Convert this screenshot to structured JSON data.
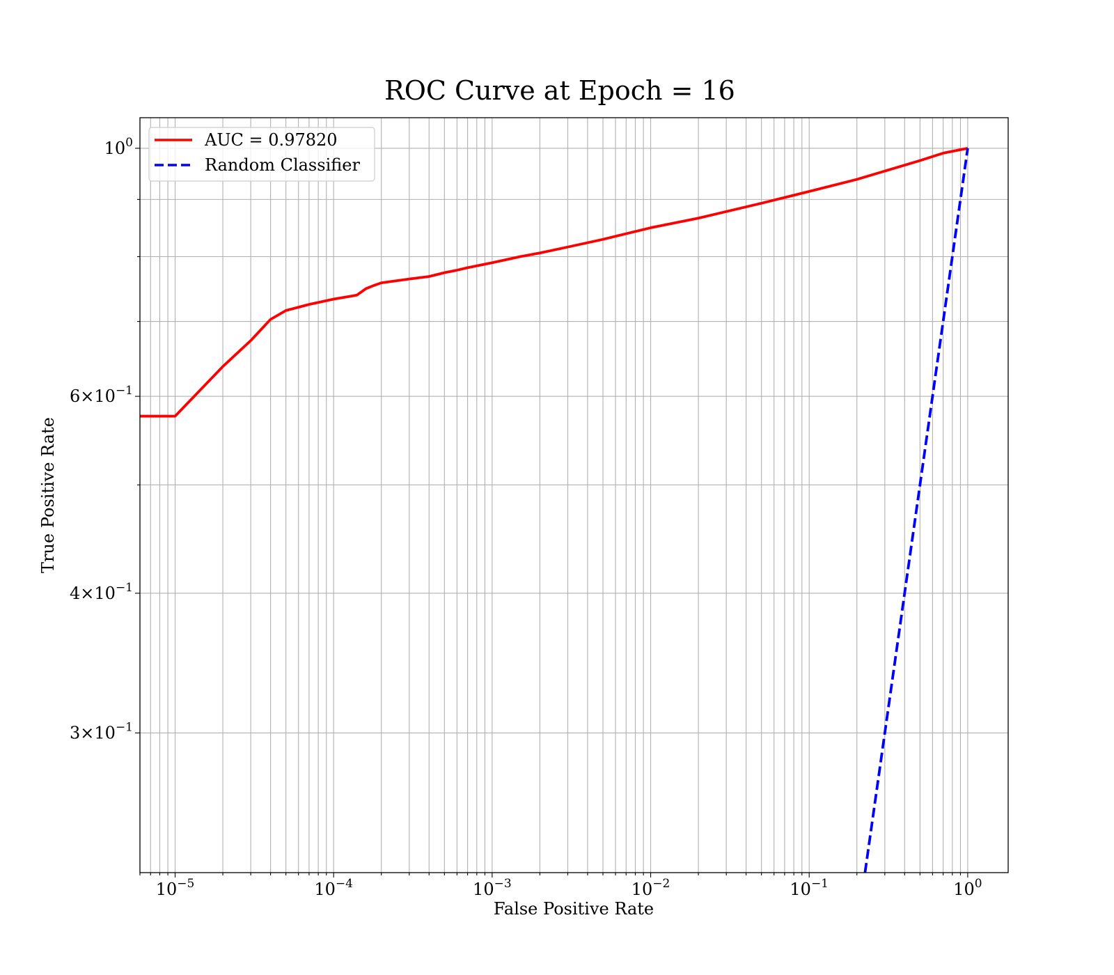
{
  "chart_data": {
    "type": "line",
    "title": "ROC Curve at Epoch = 16",
    "xlabel": "False Positive Rate",
    "ylabel": "True Positive Rate",
    "xscale": "log",
    "yscale": "log",
    "xlim": [
      6e-06,
      1.8
    ],
    "ylim": [
      0.225,
      1.065
    ],
    "grid": "both major and minor",
    "legend_position": "upper-left",
    "x_ticks": [
      {
        "base": "10",
        "exp": "−5"
      },
      {
        "base": "10",
        "exp": "−4"
      },
      {
        "base": "10",
        "exp": "−3"
      },
      {
        "base": "10",
        "exp": "−2"
      },
      {
        "base": "10",
        "exp": "−1"
      },
      {
        "base": "10",
        "exp": "0"
      }
    ],
    "y_ticks": [
      {
        "coef": "",
        "base": "10",
        "exp": "0"
      },
      {
        "coef": "6×",
        "base": "10",
        "exp": "−1"
      },
      {
        "coef": "4×",
        "base": "10",
        "exp": "−1"
      },
      {
        "coef": "3×",
        "base": "10",
        "exp": "−1"
      }
    ],
    "series": [
      {
        "name": "AUC = 0.97820",
        "color": "#ff0000",
        "style": "solid",
        "x": [
          6e-06,
          1e-05,
          2e-05,
          3e-05,
          4e-05,
          5e-05,
          7e-05,
          0.0001,
          0.00014,
          0.00016,
          0.00018,
          0.0002,
          0.0003,
          0.0004,
          0.0005,
          0.0006,
          0.0007,
          0.001,
          0.0015,
          0.002,
          0.003,
          0.005,
          0.01,
          0.02,
          0.05,
          0.1,
          0.2,
          0.5,
          0.7,
          1.0
        ],
        "y": [
          0.576,
          0.576,
          0.638,
          0.673,
          0.703,
          0.716,
          0.725,
          0.733,
          0.739,
          0.749,
          0.754,
          0.758,
          0.764,
          0.768,
          0.774,
          0.778,
          0.782,
          0.79,
          0.8,
          0.806,
          0.816,
          0.829,
          0.849,
          0.866,
          0.893,
          0.915,
          0.938,
          0.975,
          0.99,
          1.0
        ]
      },
      {
        "name": "Random Classifier",
        "color": "#0000ff",
        "style": "dashed",
        "x": [
          0.225,
          1.0
        ],
        "y": [
          0.225,
          1.0
        ]
      }
    ]
  }
}
